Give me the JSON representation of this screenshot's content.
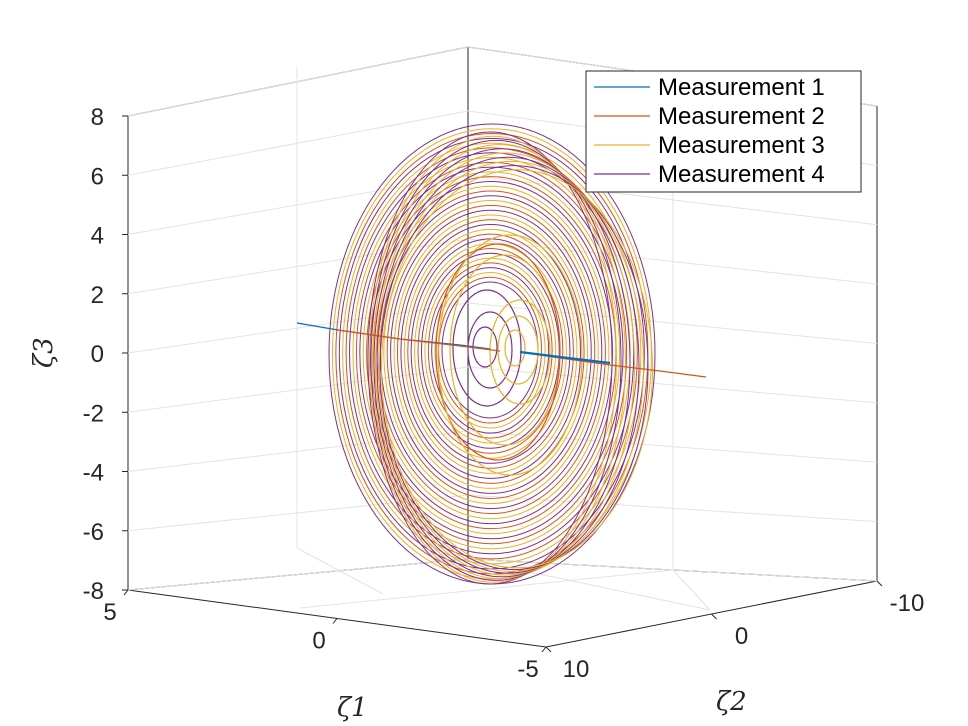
{
  "chart_data": {
    "type": "line3d",
    "title": "",
    "view": "3-D perspective, box axes with grid",
    "grid": true,
    "xlabel": "ζ1",
    "ylabel": "ζ2",
    "zlabel": "ζ3",
    "xlim": [
      -5,
      5
    ],
    "ylim": [
      -10,
      10
    ],
    "zlim": [
      -8,
      8
    ],
    "x_ticks": [
      "5",
      "0",
      "-5"
    ],
    "y_ticks": [
      "10",
      "0",
      "-10"
    ],
    "z_ticks": [
      "8",
      "6",
      "4",
      "2",
      "0",
      "-2",
      "-4",
      "-6",
      "-8"
    ],
    "legend_location": "top-right",
    "series": [
      {
        "name": "Measurement 1",
        "color": "#0072BD",
        "shape": "near-straight trajectory along the ζ2-direction close to ζ3 = 0 with a small spiral near the origin"
      },
      {
        "name": "Measurement 2",
        "color": "#D95319",
        "shape": "trajectory along the ζ2-direction plus a large outward spiral in the ζ1–ζ3 plane, radius up to about 8"
      },
      {
        "name": "Measurement 3",
        "color": "#EDB120",
        "shape": "large outward spiral in the ζ1–ζ3 plane, radius up to about 8, with inner loops"
      },
      {
        "name": "Measurement 4",
        "color": "#7E2F8E",
        "shape": "large outward spiral in the ζ1–ζ3 plane, radius up to about 8, with inner loops"
      }
    ]
  }
}
